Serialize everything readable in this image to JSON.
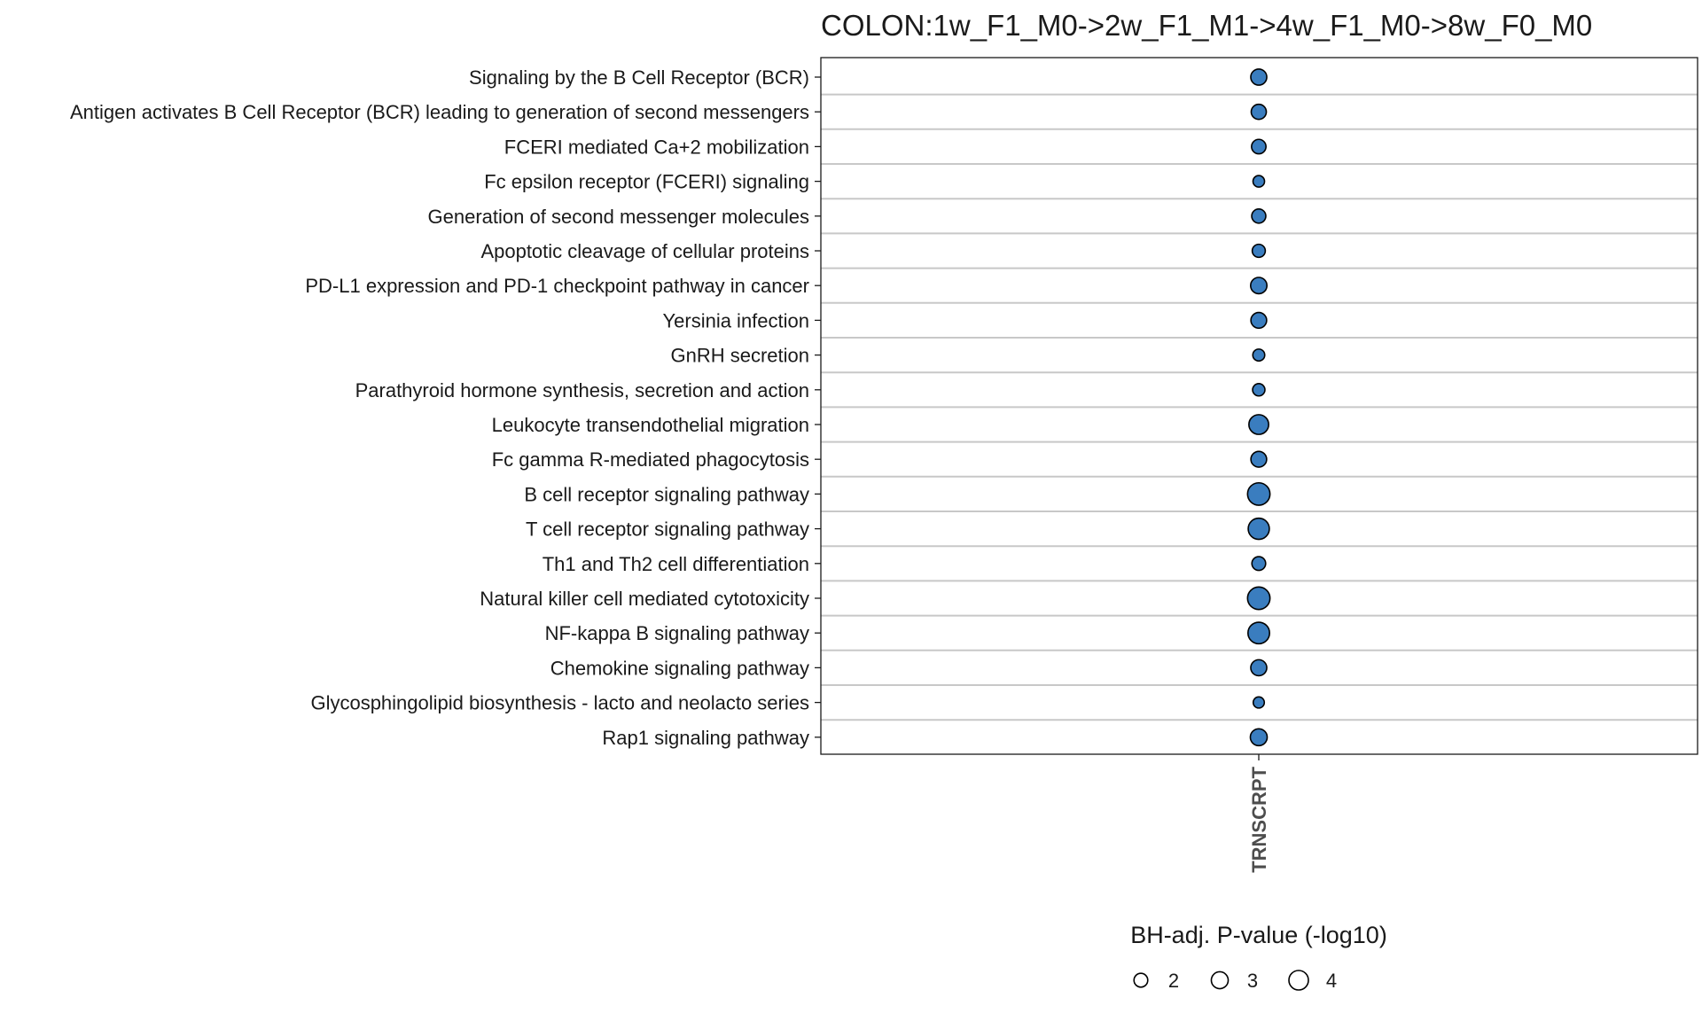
{
  "chart_data": {
    "type": "scatter",
    "title": "COLON:1w_F1_M0->2w_F1_M1->4w_F1_M0->8w_F0_M0",
    "x_categories": [
      "TRNSCRPT"
    ],
    "y_categories": [
      "Signaling by the B Cell Receptor (BCR)",
      "Antigen activates B Cell Receptor (BCR) leading to generation of second messengers",
      "FCERI mediated Ca+2 mobilization",
      "Fc epsilon receptor (FCERI) signaling",
      "Generation of second messenger molecules",
      "Apoptotic cleavage of cellular proteins",
      "PD-L1 expression and PD-1 checkpoint pathway in cancer",
      "Yersinia infection",
      "GnRH secretion",
      "Parathyroid hormone synthesis, secretion and action",
      "Leukocyte transendothelial migration",
      "Fc gamma R-mediated phagocytosis",
      "B cell receptor signaling pathway",
      "T cell receptor signaling pathway",
      "Th1 and Th2 cell differentiation",
      "Natural killer cell mediated cytotoxicity",
      "NF-kappa B signaling pathway",
      "Chemokine signaling pathway",
      "Glycosphingolipid biosynthesis - lacto and neolacto series",
      "Rap1 signaling pathway"
    ],
    "points": [
      {
        "x": "TRNSCRPT",
        "y": "Signaling by the B Cell Receptor (BCR)",
        "size": 2.7
      },
      {
        "x": "TRNSCRPT",
        "y": "Antigen activates B Cell Receptor (BCR) leading to generation of second messengers",
        "size": 2.4
      },
      {
        "x": "TRNSCRPT",
        "y": "FCERI mediated Ca+2 mobilization",
        "size": 2.2
      },
      {
        "x": "TRNSCRPT",
        "y": "Fc epsilon receptor (FCERI) signaling",
        "size": 1.4
      },
      {
        "x": "TRNSCRPT",
        "y": "Generation of second messenger molecules",
        "size": 2.1
      },
      {
        "x": "TRNSCRPT",
        "y": "Apoptotic cleavage of cellular proteins",
        "size": 1.8
      },
      {
        "x": "TRNSCRPT",
        "y": "PD-L1 expression and PD-1 checkpoint pathway in cancer",
        "size": 2.8
      },
      {
        "x": "TRNSCRPT",
        "y": "Yersinia infection",
        "size": 2.6
      },
      {
        "x": "TRNSCRPT",
        "y": "GnRH secretion",
        "size": 1.5
      },
      {
        "x": "TRNSCRPT",
        "y": "Parathyroid hormone synthesis, secretion and action",
        "size": 1.6
      },
      {
        "x": "TRNSCRPT",
        "y": "Leukocyte transendothelial migration",
        "size": 4.1
      },
      {
        "x": "TRNSCRPT",
        "y": "Fc gamma R-mediated phagocytosis",
        "size": 2.6
      },
      {
        "x": "TRNSCRPT",
        "y": "B cell receptor signaling pathway",
        "size": 5.3
      },
      {
        "x": "TRNSCRPT",
        "y": "T cell receptor signaling pathway",
        "size": 4.7
      },
      {
        "x": "TRNSCRPT",
        "y": "Th1 and Th2 cell differentiation",
        "size": 2.0
      },
      {
        "x": "TRNSCRPT",
        "y": "Natural killer cell mediated cytotoxicity",
        "size": 5.3
      },
      {
        "x": "TRNSCRPT",
        "y": "NF-kappa B signaling pathway",
        "size": 4.9
      },
      {
        "x": "TRNSCRPT",
        "y": "Chemokine signaling pathway",
        "size": 2.7
      },
      {
        "x": "TRNSCRPT",
        "y": "Glycosphingolipid biosynthesis - lacto and neolacto series",
        "size": 1.3
      },
      {
        "x": "TRNSCRPT",
        "y": "Rap1 signaling pathway",
        "size": 3.0
      }
    ],
    "size_legend": {
      "title": "BH-adj. P-value (-log10)",
      "breaks": [
        2,
        3,
        4
      ],
      "labels": [
        "2",
        "3",
        "4"
      ]
    },
    "grid": true,
    "legend_position": "bottom",
    "colors": {
      "point_fill": "#3a7dbf",
      "point_stroke": "#000000",
      "gridline": "#c8c8c8",
      "text": "#1a1a1a",
      "x_tick_text": "#4d4d4d"
    }
  }
}
